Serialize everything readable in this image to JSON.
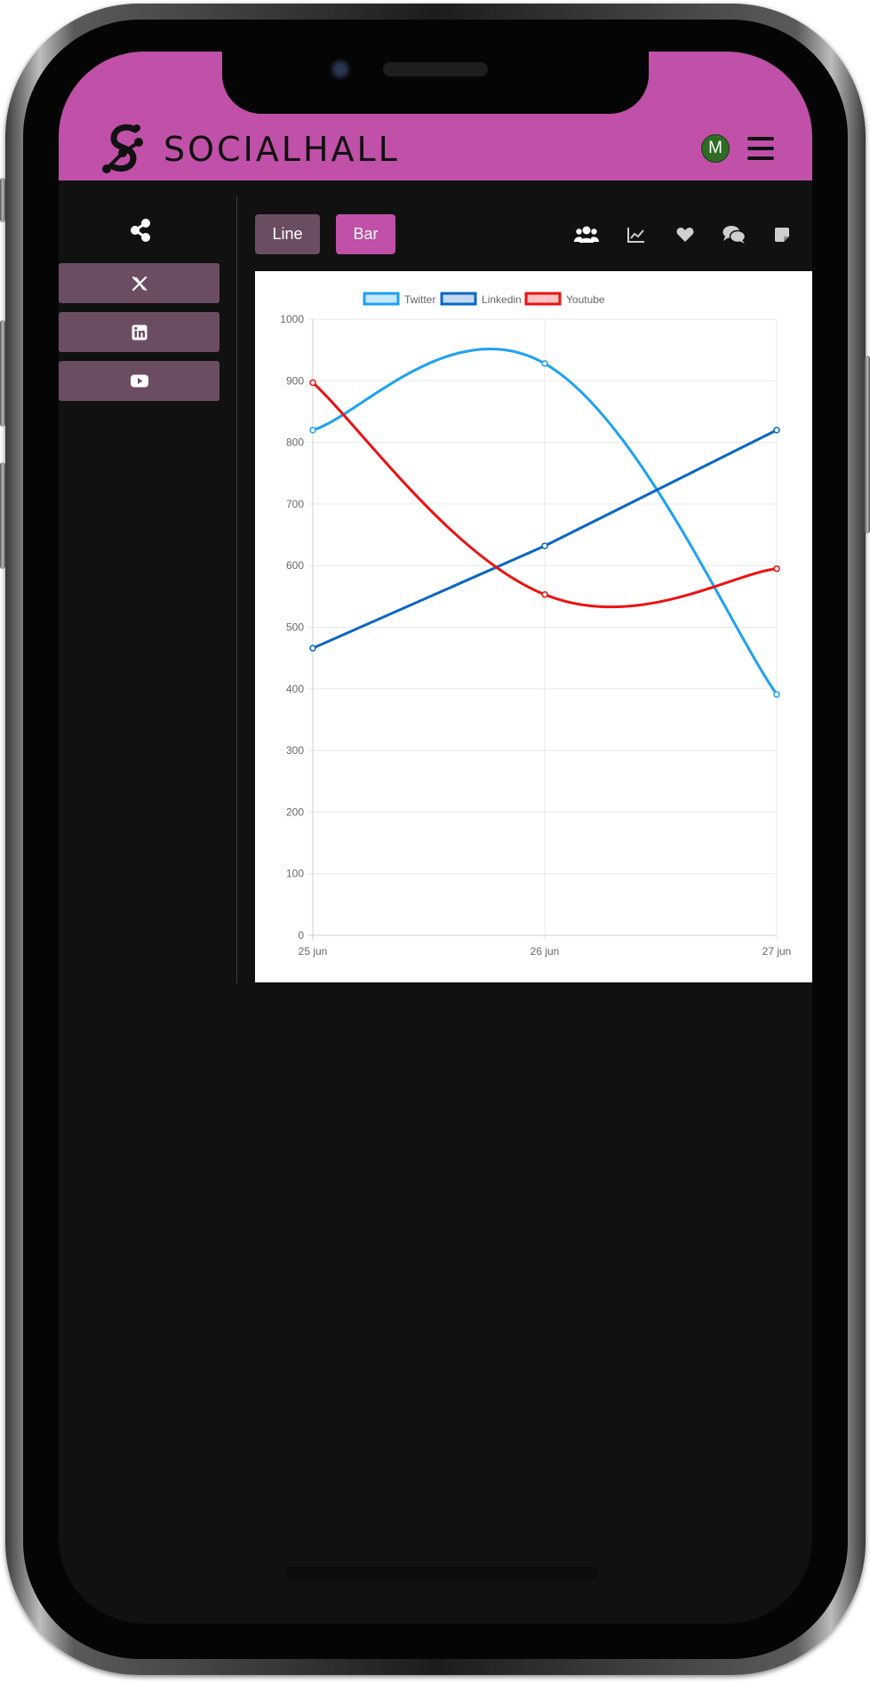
{
  "app": {
    "brand": "SOCIALHALL",
    "avatar_initial": "M",
    "accent_color": "#c050a8",
    "muted_button_color": "#6b4d63"
  },
  "sidebar": {
    "header_icon": "share-icon",
    "items": [
      {
        "name": "x-twitter",
        "icon": "x-logo-icon"
      },
      {
        "name": "linkedin",
        "icon": "linkedin-icon"
      },
      {
        "name": "youtube",
        "icon": "youtube-icon"
      }
    ]
  },
  "toolbar": {
    "line_label": "Line",
    "bar_label": "Bar",
    "icons": [
      "users-icon",
      "chart-line-icon",
      "heart-icon",
      "comments-icon",
      "note-icon"
    ]
  },
  "chart_data": {
    "type": "line",
    "x": [
      "25 jun",
      "26 jun",
      "27 jun"
    ],
    "ylim": [
      0,
      1000
    ],
    "yticks": [
      0,
      100,
      200,
      300,
      400,
      500,
      600,
      700,
      800,
      900,
      1000
    ],
    "grid": true,
    "legend_position": "top",
    "series": [
      {
        "name": "Twitter",
        "color": "#1da1f2",
        "values": [
          820,
          928,
          391
        ]
      },
      {
        "name": "Linkedin",
        "color": "#0a66c2",
        "values": [
          466,
          632,
          820
        ]
      },
      {
        "name": "Youtube",
        "color": "#ee1111",
        "values": [
          897,
          553,
          595
        ]
      }
    ]
  }
}
